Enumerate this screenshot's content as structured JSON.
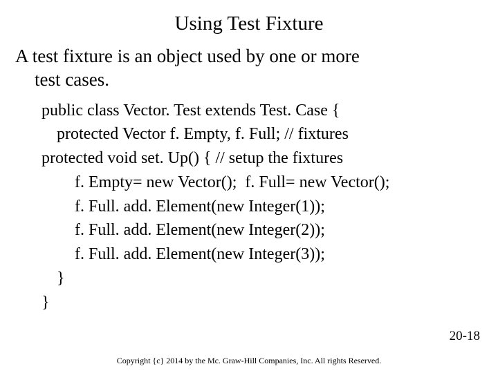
{
  "title": "Using Test Fixture",
  "body": {
    "line1": "A test fixture is an object used by one or more",
    "line2": "test cases."
  },
  "code": {
    "l0": "public class Vector. Test extends Test. Case {",
    "l1": "protected Vector f. Empty, f. Full; // fixtures",
    "l2": "protected void set. Up() { // setup the fixtures",
    "l3": "f. Empty= new Vector();  f. Full= new Vector();",
    "l4": "f. Full. add. Element(new Integer(1));",
    "l5": "f. Full. add. Element(new Integer(2));",
    "l6": "f. Full. add. Element(new Integer(3));",
    "l7": "}",
    "l8": "}"
  },
  "page_number": "20-18",
  "copyright": "Copyright {c} 2014 by the Mc. Graw-Hill Companies, Inc. All rights Reserved.",
  "style": {
    "background_color": "#ffffff",
    "text_color": "#000000",
    "font_family": "Times New Roman",
    "title_fontsize": 29,
    "body_fontsize": 27,
    "code_fontsize": 24,
    "footer_fontsize": 12,
    "pagenum_fontsize": 19
  }
}
